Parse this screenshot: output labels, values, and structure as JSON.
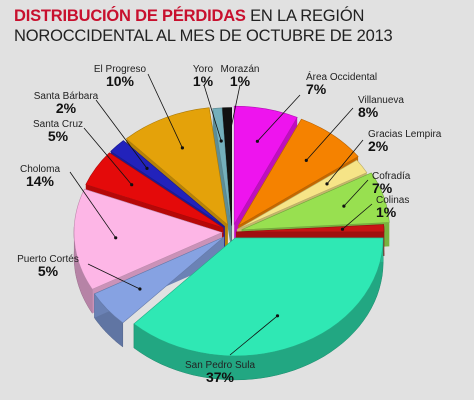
{
  "title": {
    "highlight": "DISTRIBUCIÓN DE PÉRDIDAS",
    "rest": " EN LA REGIÓN",
    "line2": "NOROCCIDENTAL AL MES DE OCTUBRE DE 2013"
  },
  "chart_data": {
    "type": "pie",
    "title": "DISTRIBUCIÓN DE PÉRDIDAS EN LA REGIÓN NOROCCIDENTAL AL MES DE OCTUBRE DE 2013",
    "slices": [
      {
        "label": "Área Occidental",
        "value": 7,
        "pct_label": "7%",
        "color": "#ee14ee"
      },
      {
        "label": "Villanueva",
        "value": 8,
        "pct_label": "8%",
        "color": "#f58200"
      },
      {
        "label": "Gracias Lempira",
        "value": 2,
        "pct_label": "2%",
        "color": "#f6e487"
      },
      {
        "label": "Cofradía",
        "value": 7,
        "pct_label": "7%",
        "color": "#98e050"
      },
      {
        "label": "Colinas",
        "value": 1,
        "pct_label": "1%",
        "color": "#c81414"
      },
      {
        "label": "San Pedro Sula",
        "value": 37,
        "pct_label": "37%",
        "color": "#2fe8b4"
      },
      {
        "label": "Puerto Cortés",
        "value": 5,
        "pct_label": "5%",
        "color": "#86a2e2"
      },
      {
        "label": "Choloma",
        "value": 14,
        "pct_label": "14%",
        "color": "#fdb6e6"
      },
      {
        "label": "Santa Cruz",
        "value": 5,
        "pct_label": "5%",
        "color": "#e40a0a"
      },
      {
        "label": "Santa Bárbara",
        "value": 2,
        "pct_label": "2%",
        "color": "#2222bb"
      },
      {
        "label": "El Progreso",
        "value": 10,
        "pct_label": "10%",
        "color": "#e4a20a"
      },
      {
        "label": "Yoro",
        "value": 1,
        "pct_label": "1%",
        "color": "#74b0bc"
      },
      {
        "label": "Morazán",
        "value": 1,
        "pct_label": "1%",
        "color": "#111111"
      }
    ]
  }
}
